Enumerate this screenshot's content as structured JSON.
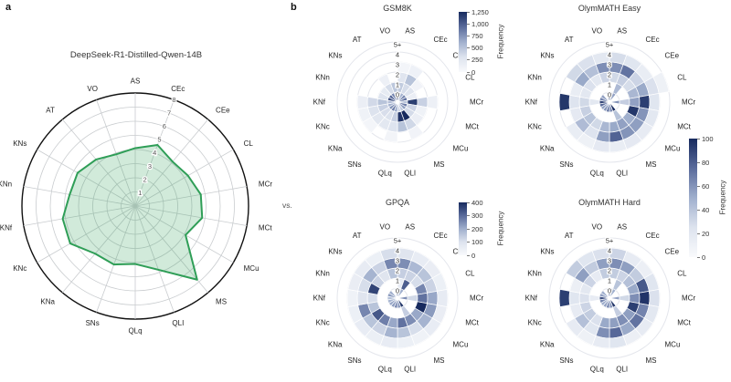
{
  "panel_a": {
    "label": "a"
  },
  "panel_b": {
    "label": "b",
    "vs_label": "vs."
  },
  "categories": [
    "AS",
    "CEc",
    "CEe",
    "CL",
    "MCr",
    "MCt",
    "MCu",
    "MS",
    "QLI",
    "QLq",
    "SNs",
    "KNa",
    "KNc",
    "KNf",
    "KNn",
    "KNs",
    "AT",
    "VO"
  ],
  "shared_colorbar": {
    "label": "Frequency",
    "max": 100,
    "ticks": [
      "100",
      "80",
      "60",
      "40",
      "20",
      "0"
    ]
  },
  "colors": {
    "radar_line": "#2f9e57",
    "radar_fill": "rgba(47,158,87,0.22)",
    "radar_grid": "#c9cccf",
    "radar_outer": "#111111",
    "heat_grid": "#e4e6ec",
    "cell_stroke": "#ffffff",
    "colormap": [
      "#f9fafc",
      "#dde3ee",
      "#a0afcd",
      "#5a6b9b",
      "#172a5e"
    ],
    "text": "#333333",
    "tick_text": "#555555"
  },
  "chart_data": [
    {
      "id": "radar",
      "type": "radar",
      "title": "DeepSeek-R1-Distilled-Qwen-14B",
      "rmax": 8,
      "r_ticks": [
        "1",
        "2",
        "3",
        "4",
        "5",
        "6",
        "7",
        "8"
      ],
      "values": [
        4.1,
        4.6,
        4.1,
        4.3,
        4.7,
        4.8,
        4.1,
        6.8,
        4.8,
        4.1,
        4.4,
        4.4,
        5.3,
        5.2,
        4.7,
        4.7,
        4.3,
        3.9
      ]
    },
    {
      "id": "gsm8k",
      "type": "polar_heatmap",
      "title": "GSM8K",
      "rings": [
        "0",
        "1",
        "2",
        "3",
        "4",
        "5+"
      ],
      "cmax": 1250,
      "colorbar": {
        "label": "Frequency",
        "ticks": [
          "1,250",
          "1,000",
          "750",
          "500",
          "250",
          "0"
        ]
      },
      "values": [
        [
          1100,
          450,
          280,
          70,
          0,
          0
        ],
        [
          600,
          350,
          500,
          120,
          0,
          0
        ],
        [
          800,
          280,
          90,
          0,
          0,
          0
        ],
        [
          900,
          160,
          0,
          0,
          0,
          0
        ],
        [
          500,
          1150,
          420,
          130,
          0,
          0
        ],
        [
          850,
          400,
          110,
          0,
          0,
          0
        ],
        [
          700,
          360,
          160,
          0,
          0,
          0
        ],
        [
          450,
          1250,
          380,
          90,
          0,
          0
        ],
        [
          400,
          1200,
          500,
          0,
          0,
          0
        ],
        [
          650,
          430,
          300,
          80,
          0,
          0
        ],
        [
          850,
          320,
          240,
          0,
          0,
          0
        ],
        [
          750,
          340,
          260,
          70,
          0,
          0
        ],
        [
          600,
          420,
          310,
          110,
          0,
          0
        ],
        [
          550,
          500,
          370,
          160,
          0,
          0
        ],
        [
          1050,
          300,
          0,
          0,
          0,
          0
        ],
        [
          950,
          210,
          0,
          0,
          0,
          0
        ],
        [
          800,
          350,
          130,
          0,
          0,
          0
        ],
        [
          1150,
          480,
          0,
          0,
          0,
          0
        ]
      ]
    },
    {
      "id": "olymmath_easy",
      "type": "polar_heatmap",
      "title": "OlymMATH Easy",
      "rings": [
        "0",
        "1",
        "2",
        "3",
        "4",
        "5+"
      ],
      "cmax": 100,
      "colorbar": "shared",
      "values": [
        [
          70,
          0,
          30,
          62,
          28,
          0
        ],
        [
          55,
          45,
          35,
          72,
          22,
          0
        ],
        [
          0,
          0,
          28,
          32,
          14,
          0
        ],
        [
          0,
          0,
          46,
          52,
          26,
          10
        ],
        [
          60,
          35,
          55,
          92,
          22,
          0
        ],
        [
          0,
          0,
          95,
          60,
          20,
          0
        ],
        [
          0,
          0,
          50,
          56,
          16,
          0
        ],
        [
          100,
          40,
          55,
          60,
          18,
          0
        ],
        [
          65,
          0,
          52,
          78,
          14,
          0
        ],
        [
          70,
          0,
          46,
          56,
          18,
          0
        ],
        [
          60,
          0,
          30,
          24,
          10,
          0
        ],
        [
          55,
          0,
          40,
          44,
          14,
          0
        ],
        [
          75,
          0,
          34,
          18,
          0,
          0
        ],
        [
          90,
          20,
          30,
          24,
          95,
          0
        ],
        [
          65,
          0,
          20,
          14,
          0,
          0
        ],
        [
          55,
          0,
          26,
          52,
          30,
          0
        ],
        [
          0,
          0,
          20,
          42,
          26,
          0
        ],
        [
          80,
          0,
          32,
          62,
          20,
          0
        ]
      ]
    },
    {
      "id": "gpqa",
      "type": "polar_heatmap",
      "title": "GPQA",
      "rings": [
        "0",
        "1",
        "2",
        "3",
        "4",
        "5+"
      ],
      "cmax": 400,
      "colorbar": {
        "label": "Frequency",
        "ticks": [
          "400",
          "300",
          "200",
          "100",
          "0"
        ]
      },
      "values": [
        [
          260,
          60,
          140,
          250,
          90,
          0
        ],
        [
          200,
          320,
          130,
          180,
          60,
          0
        ],
        [
          0,
          0,
          110,
          160,
          55,
          0
        ],
        [
          0,
          0,
          260,
          130,
          45,
          0
        ],
        [
          250,
          120,
          290,
          210,
          65,
          0
        ],
        [
          0,
          0,
          400,
          230,
          55,
          0
        ],
        [
          0,
          0,
          210,
          190,
          60,
          0
        ],
        [
          380,
          140,
          250,
          110,
          35,
          0
        ],
        [
          240,
          0,
          290,
          160,
          45,
          0
        ],
        [
          260,
          0,
          210,
          190,
          60,
          0
        ],
        [
          230,
          0,
          270,
          130,
          50,
          0
        ],
        [
          210,
          0,
          330,
          160,
          60,
          0
        ],
        [
          190,
          0,
          160,
          260,
          45,
          0
        ],
        [
          170,
          0,
          110,
          90,
          35,
          0
        ],
        [
          230,
          0,
          360,
          110,
          55,
          0
        ],
        [
          200,
          0,
          130,
          190,
          65,
          0
        ],
        [
          0,
          0,
          90,
          130,
          45,
          0
        ],
        [
          250,
          0,
          160,
          260,
          110,
          0
        ]
      ]
    },
    {
      "id": "olymmath_hard",
      "type": "polar_heatmap",
      "title": "OlymMATH Hard",
      "rings": [
        "0",
        "1",
        "2",
        "3",
        "4",
        "5+"
      ],
      "cmax": 100,
      "colorbar": "shared",
      "values": [
        [
          65,
          0,
          36,
          62,
          32,
          0
        ],
        [
          50,
          40,
          32,
          56,
          16,
          0
        ],
        [
          0,
          0,
          42,
          36,
          12,
          0
        ],
        [
          0,
          0,
          52,
          82,
          22,
          0
        ],
        [
          55,
          30,
          62,
          96,
          26,
          0
        ],
        [
          0,
          0,
          92,
          66,
          20,
          0
        ],
        [
          0,
          0,
          56,
          72,
          16,
          0
        ],
        [
          95,
          35,
          62,
          52,
          12,
          0
        ],
        [
          60,
          0,
          56,
          76,
          22,
          0
        ],
        [
          65,
          0,
          52,
          62,
          16,
          0
        ],
        [
          55,
          0,
          26,
          22,
          10,
          0
        ],
        [
          50,
          0,
          36,
          42,
          16,
          0
        ],
        [
          65,
          0,
          32,
          16,
          0,
          0
        ],
        [
          85,
          15,
          26,
          22,
          92,
          0
        ],
        [
          55,
          0,
          20,
          12,
          0,
          0
        ],
        [
          50,
          0,
          32,
          56,
          36,
          0
        ],
        [
          0,
          0,
          16,
          36,
          22,
          0
        ],
        [
          75,
          0,
          36,
          56,
          26,
          0
        ]
      ]
    }
  ]
}
